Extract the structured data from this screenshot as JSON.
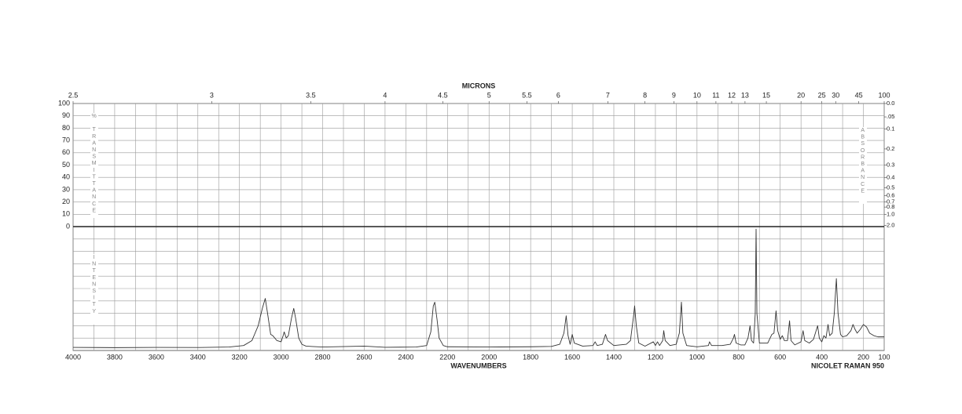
{
  "chart_data": {
    "type": "line",
    "title": "MICRONS",
    "xlabel": "WAVENUMBERS",
    "note": "NICOLET RAMAN 950",
    "ylabel": "% TRANSMITTANCE",
    "y2label": "ABSORBANCE",
    "intensity_label": "INTENSITY",
    "xlim": [
      4000,
      100
    ],
    "xticks": [
      4000,
      3800,
      3600,
      3400,
      3200,
      3000,
      2800,
      2600,
      2400,
      2200,
      2000,
      1800,
      1600,
      1400,
      1200,
      1000,
      800,
      600,
      400,
      200,
      100
    ],
    "x2lim": [
      2.5,
      100
    ],
    "x2scale": "reciprocal",
    "x2ticks": [
      2.5,
      3,
      3.5,
      4,
      4.5,
      5,
      5.5,
      6,
      7,
      8,
      9,
      10,
      11,
      12,
      13,
      15,
      20,
      25,
      30,
      45,
      100
    ],
    "ylim": [
      0,
      100
    ],
    "yticks": [
      0,
      10,
      20,
      30,
      40,
      50,
      60,
      70,
      80,
      90,
      100
    ],
    "y2lim": [
      0,
      2
    ],
    "y2scale": "absorbance",
    "y2ticks": [
      {
        "value": 0,
        "label": "0.0"
      },
      {
        "value": 0.05,
        "label": ".05"
      },
      0.1,
      0.2,
      0.3,
      0.4,
      0.5,
      0.6,
      0.7,
      0.8,
      {
        "value": 1,
        "label": "1.0"
      },
      {
        "value": 2,
        "label": "2.0"
      }
    ],
    "intensity_lim": [
      0,
      100
    ],
    "grid": true,
    "color": "#333333",
    "x": [
      4000,
      3800,
      3600,
      3400,
      3250,
      3180,
      3140,
      3125,
      3110,
      3090,
      3076,
      3065,
      3050,
      3040,
      3020,
      3000,
      2990,
      2985,
      2975,
      2965,
      2950,
      2939,
      2930,
      2915,
      2900,
      2880,
      2850,
      2800,
      2600,
      2500,
      2350,
      2300,
      2280,
      2268,
      2261,
      2250,
      2240,
      2220,
      2200,
      2000,
      1800,
      1700,
      1660,
      1640,
      1629,
      1620,
      1610,
      1600,
      1590,
      1550,
      1500,
      1490,
      1480,
      1455,
      1440,
      1430,
      1400,
      1340,
      1320,
      1305,
      1300,
      1292,
      1280,
      1250,
      1210,
      1200,
      1190,
      1180,
      1165,
      1160,
      1153,
      1130,
      1100,
      1085,
      1075,
      1068,
      1050,
      1000,
      945,
      940,
      930,
      880,
      840,
      825,
      820,
      812,
      790,
      770,
      755,
      745,
      738,
      728,
      720,
      716,
      712,
      700,
      660,
      640,
      630,
      620,
      612,
      600,
      590,
      580,
      565,
      555,
      548,
      530,
      500,
      490,
      482,
      460,
      440,
      420,
      412,
      400,
      390,
      380,
      370,
      362,
      350,
      340,
      330,
      322,
      310,
      300,
      280,
      260,
      250,
      240,
      230,
      215,
      200,
      185,
      170,
      150,
      130,
      100
    ],
    "values": [
      2.5,
      2.3,
      2.5,
      2.4,
      2.8,
      4,
      8,
      14,
      20,
      34,
      42,
      30,
      13,
      12,
      8,
      7,
      12,
      15,
      10,
      12,
      26,
      34,
      26,
      10,
      5,
      3.5,
      3.2,
      2.8,
      3.5,
      2.6,
      2.8,
      4,
      15,
      36,
      39,
      25,
      10,
      4,
      3,
      2.8,
      3,
      3.3,
      5,
      14,
      28,
      12,
      5,
      13,
      6,
      3.5,
      4,
      7,
      4,
      5,
      13,
      8,
      4,
      5,
      8,
      28,
      36,
      20,
      6,
      3.5,
      7,
      4,
      7,
      4,
      8,
      16,
      8,
      4,
      5,
      14,
      39,
      14,
      4,
      3,
      4,
      7,
      4,
      4,
      5,
      10,
      13,
      6,
      4.5,
      4.5,
      10,
      20,
      8,
      6,
      30,
      98,
      30,
      6,
      6,
      13,
      14,
      32,
      16,
      9,
      12,
      8,
      8,
      24,
      8,
      4.5,
      7,
      16,
      8,
      6,
      9,
      20,
      10,
      7,
      12,
      10,
      21,
      12,
      14,
      30,
      58,
      30,
      13,
      11,
      12,
      16,
      21,
      17,
      14,
      17,
      21,
      19,
      14,
      12,
      11,
      11
    ]
  }
}
